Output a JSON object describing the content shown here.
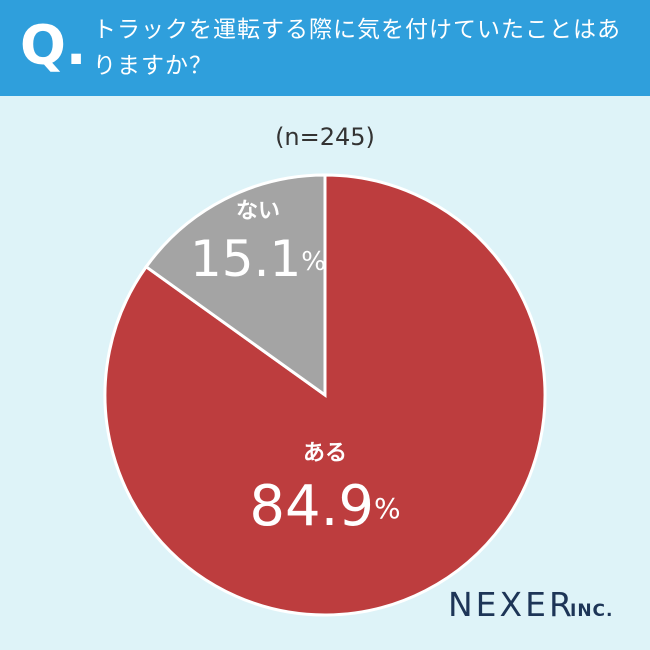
{
  "chart_data": {
    "type": "pie",
    "question_label": "Q.",
    "title": "トラックを運転する際に気を付けていたことはありますか？",
    "subtitle": "(n=245)",
    "categories": [
      "ある",
      "ない"
    ],
    "values": [
      84.9,
      15.1
    ],
    "value_labels": [
      "84.9%",
      "15.1%"
    ],
    "colors": [
      "#bd3d3e",
      "#a4a4a4"
    ],
    "brand": "NEXER",
    "brand_suffix": "INC."
  }
}
